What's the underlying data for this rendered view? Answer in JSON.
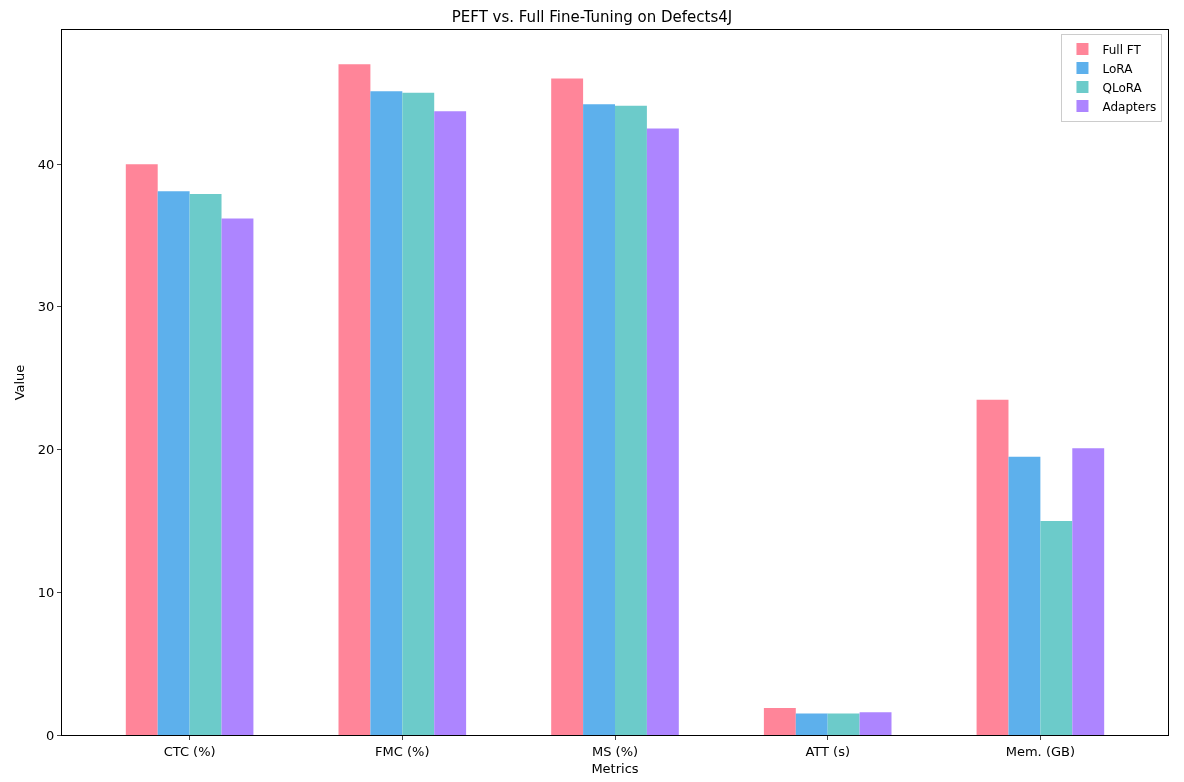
{
  "chart_data": {
    "type": "bar",
    "title": "PEFT vs. Full Fine-Tuning on Defects4J",
    "xlabel": "Metrics",
    "ylabel": "Value",
    "categories": [
      "CTC (%)",
      "FMC (%)",
      "MS (%)",
      "ATT (s)",
      "Mem. (GB)"
    ],
    "series": [
      {
        "name": "Full FT",
        "color": "#ff8599",
        "values": [
          40.0,
          47.0,
          46.0,
          1.9,
          23.5
        ]
      },
      {
        "name": "LoRA",
        "color": "#5db0ec",
        "values": [
          38.1,
          45.1,
          44.2,
          1.5,
          19.5
        ]
      },
      {
        "name": "QLoRA",
        "color": "#6ccbca",
        "values": [
          37.9,
          45.0,
          44.1,
          1.5,
          15.0
        ]
      },
      {
        "name": "Adapters",
        "color": "#ad85ff",
        "values": [
          36.2,
          43.7,
          42.5,
          1.6,
          20.1
        ]
      }
    ],
    "ylim": [
      0,
      49.4
    ],
    "yticks": [
      0,
      10,
      20,
      30,
      40
    ],
    "grid": false,
    "legend": "top right"
  }
}
